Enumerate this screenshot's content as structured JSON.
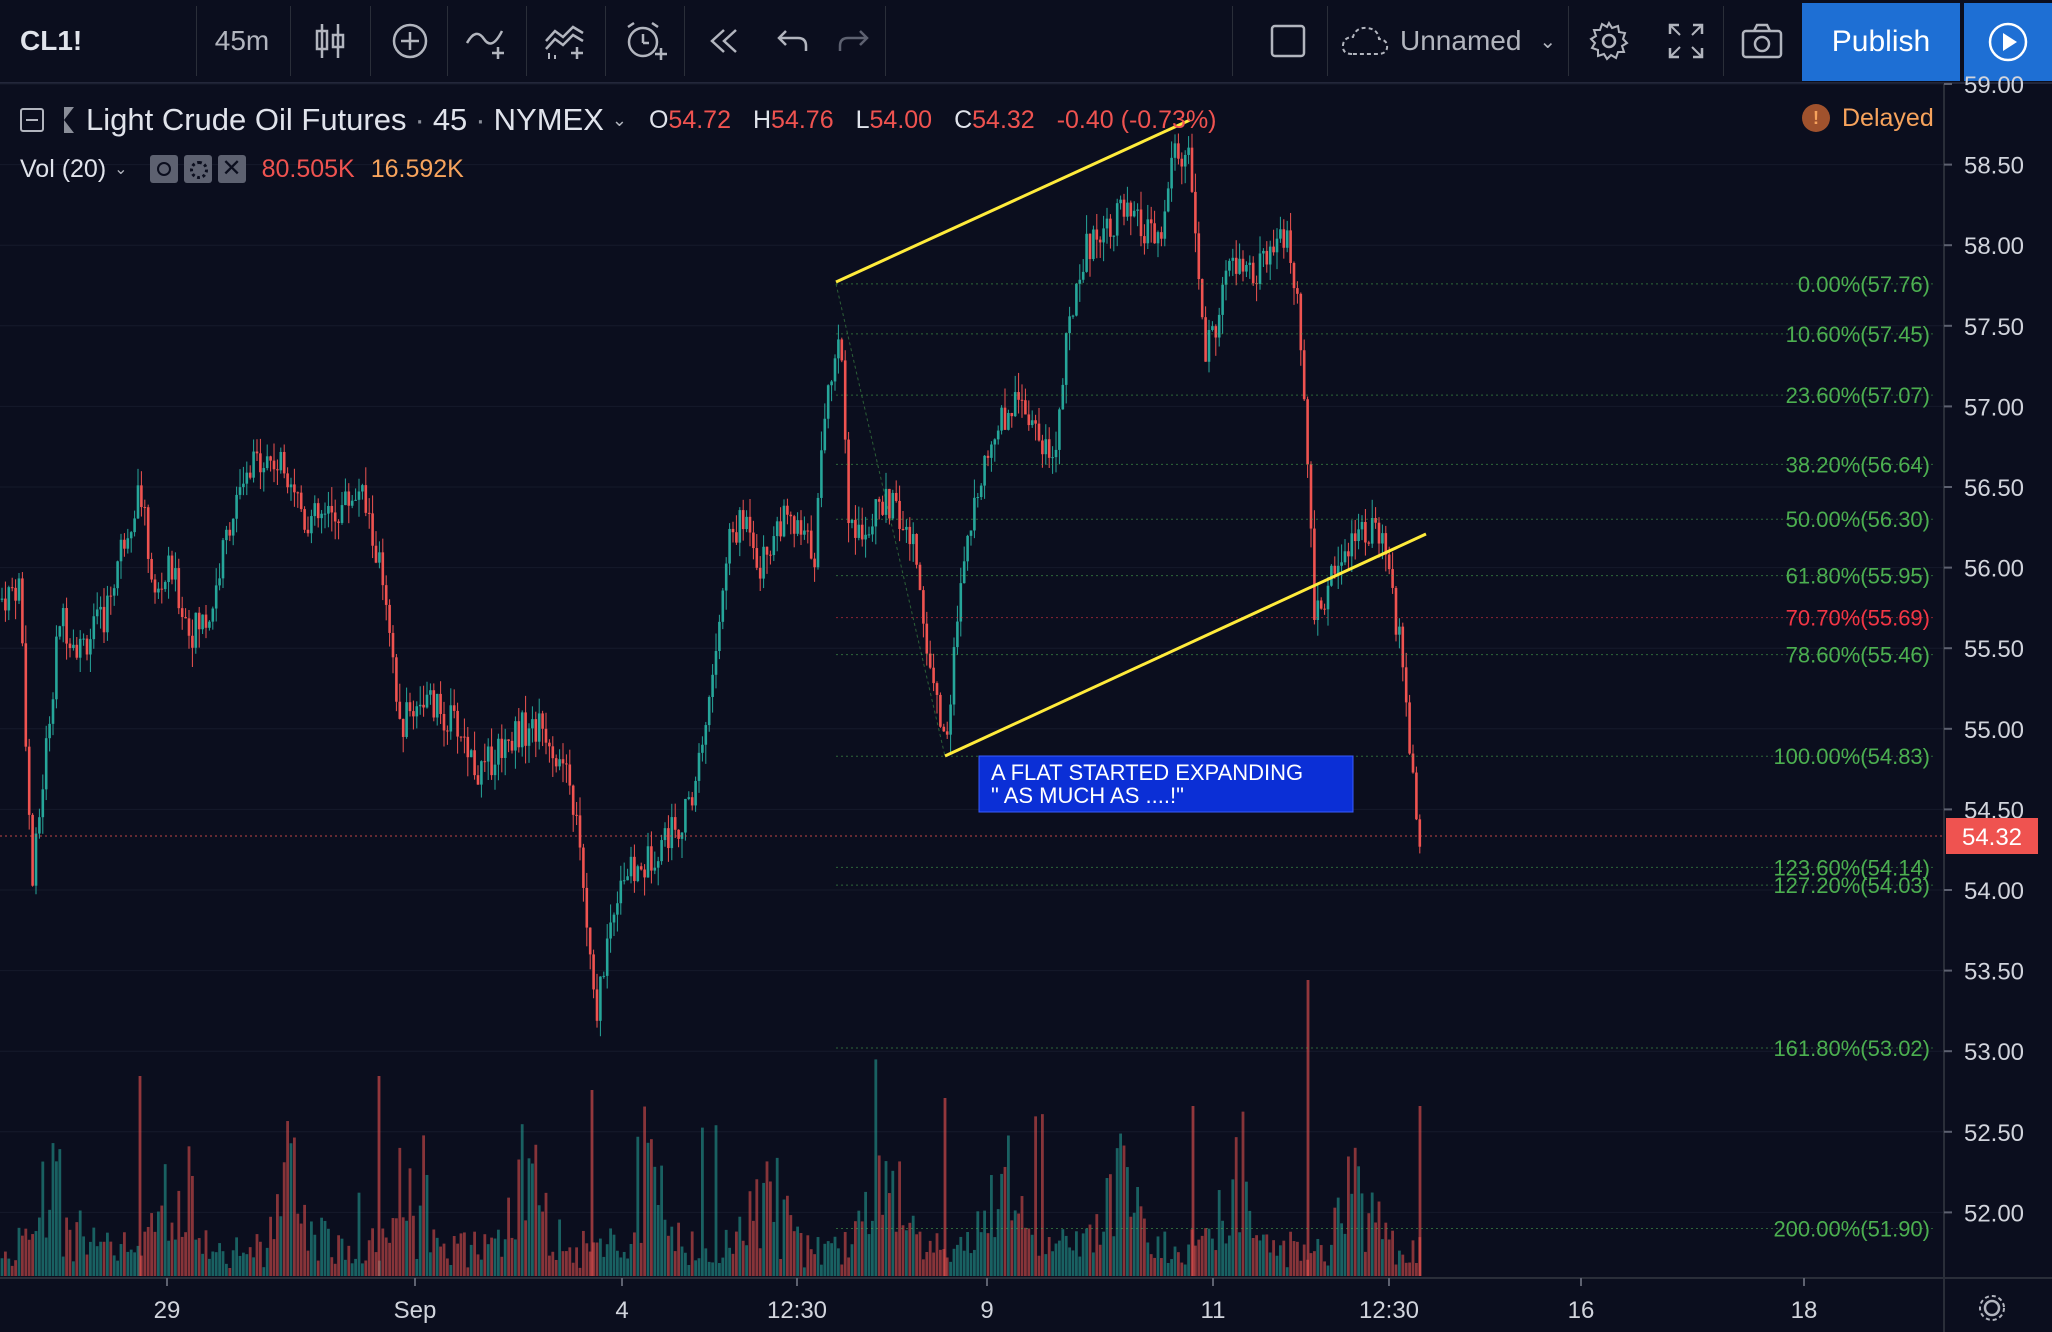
{
  "toolbar": {
    "symbol": "CL1!",
    "interval": "45m",
    "layout_name": "Unnamed",
    "publish_label": "Publish"
  },
  "legend": {
    "title": "Light Crude Oil Futures",
    "interval": "45",
    "exchange": "NYMEX",
    "open_key": "O",
    "open": "54.72",
    "high_key": "H",
    "high": "54.76",
    "low_key": "L",
    "low": "54.00",
    "close_key": "C",
    "close": "54.32",
    "change": "-0.40 (-0.73%)",
    "volume_label": "Vol (20)",
    "volume_value": "80.505K",
    "volume_ma": "16.592K",
    "delayed_label": "Delayed"
  },
  "annotation": {
    "line1": "A FLAT STARTED EXPANDING",
    "line2": "\" AS MUCH AS ....!\""
  },
  "last_price_label": "54.32",
  "colors": {
    "up": "#26a69a",
    "down": "#ef5350",
    "fib": "#4caf50",
    "fib_red": "#f23645",
    "trend": "#ffeb3b",
    "annotation_bg": "#0b2fd6",
    "publish": "#1e6fd4"
  },
  "chart_data": {
    "type": "candlestick",
    "price_axis": {
      "ticks": [
        "59.00",
        "58.50",
        "58.00",
        "57.50",
        "57.00",
        "56.50",
        "56.00",
        "55.50",
        "55.00",
        "54.50",
        "54.00",
        "53.50",
        "53.00",
        "52.50",
        "52.00"
      ],
      "range": [
        51.6,
        59.05
      ]
    },
    "time_axis": {
      "labels": [
        "29",
        "Sep",
        "4",
        "12:30",
        "9",
        "11",
        "12:30",
        "16",
        "18"
      ]
    },
    "fib_levels": [
      {
        "label": "0.00%(57.76)",
        "price": 57.76
      },
      {
        "label": "10.60%(57.45)",
        "price": 57.45
      },
      {
        "label": "23.60%(57.07)",
        "price": 57.07
      },
      {
        "label": "38.20%(56.64)",
        "price": 56.64
      },
      {
        "label": "50.00%(56.30)",
        "price": 56.3
      },
      {
        "label": "61.80%(55.95)",
        "price": 55.95
      },
      {
        "label": "70.70%(55.69)",
        "price": 55.69,
        "highlight": true
      },
      {
        "label": "78.60%(55.46)",
        "price": 55.46
      },
      {
        "label": "100.00%(54.83)",
        "price": 54.83
      },
      {
        "label": "123.60%(54.14)",
        "price": 54.14
      },
      {
        "label": "127.20%(54.03)",
        "price": 54.03
      },
      {
        "label": "161.80%(53.02)",
        "price": 53.02
      },
      {
        "label": "200.00%(51.90)",
        "price": 51.9
      }
    ],
    "price_path": [
      [
        0,
        55.8
      ],
      [
        20,
        55.9
      ],
      [
        32,
        54.0
      ],
      [
        48,
        55.0
      ],
      [
        60,
        55.7
      ],
      [
        80,
        55.5
      ],
      [
        105,
        55.7
      ],
      [
        120,
        56.1
      ],
      [
        140,
        56.5
      ],
      [
        155,
        55.8
      ],
      [
        170,
        56.0
      ],
      [
        190,
        55.6
      ],
      [
        210,
        55.7
      ],
      [
        230,
        56.3
      ],
      [
        260,
        56.7
      ],
      [
        290,
        56.6
      ],
      [
        305,
        56.3
      ],
      [
        330,
        56.3
      ],
      [
        360,
        56.5
      ],
      [
        380,
        56.0
      ],
      [
        400,
        55.0
      ],
      [
        420,
        55.2
      ],
      [
        440,
        55.1
      ],
      [
        460,
        55.0
      ],
      [
        480,
        54.7
      ],
      [
        500,
        54.9
      ],
      [
        520,
        55.0
      ],
      [
        545,
        55.0
      ],
      [
        560,
        54.8
      ],
      [
        575,
        54.5
      ],
      [
        585,
        53.9
      ],
      [
        595,
        53.2
      ],
      [
        605,
        53.6
      ],
      [
        620,
        54.1
      ],
      [
        640,
        54.1
      ],
      [
        660,
        54.3
      ],
      [
        690,
        54.5
      ],
      [
        710,
        55.2
      ],
      [
        730,
        56.2
      ],
      [
        750,
        56.3
      ],
      [
        760,
        56.0
      ],
      [
        780,
        56.3
      ],
      [
        800,
        56.2
      ],
      [
        815,
        56.1
      ],
      [
        825,
        57.0
      ],
      [
        840,
        57.5
      ],
      [
        850,
        56.2
      ],
      [
        870,
        56.3
      ],
      [
        890,
        56.4
      ],
      [
        915,
        56.1
      ],
      [
        930,
        55.4
      ],
      [
        945,
        54.9
      ],
      [
        960,
        55.8
      ],
      [
        980,
        56.6
      ],
      [
        1000,
        56.9
      ],
      [
        1020,
        57.1
      ],
      [
        1040,
        56.8
      ],
      [
        1055,
        56.7
      ],
      [
        1065,
        57.3
      ],
      [
        1080,
        57.9
      ],
      [
        1100,
        58.1
      ],
      [
        1120,
        58.2
      ],
      [
        1140,
        58.1
      ],
      [
        1160,
        58.0
      ],
      [
        1175,
        58.6
      ],
      [
        1190,
        58.5
      ],
      [
        1205,
        57.3
      ],
      [
        1215,
        57.5
      ],
      [
        1230,
        57.9
      ],
      [
        1250,
        57.8
      ],
      [
        1270,
        57.9
      ],
      [
        1285,
        58.1
      ],
      [
        1300,
        57.5
      ],
      [
        1308,
        56.5
      ],
      [
        1315,
        55.7
      ],
      [
        1325,
        55.8
      ],
      [
        1335,
        56.0
      ],
      [
        1350,
        56.2
      ],
      [
        1370,
        56.25
      ],
      [
        1385,
        56.1
      ],
      [
        1400,
        55.5
      ],
      [
        1410,
        54.9
      ],
      [
        1420,
        54.32
      ]
    ]
  }
}
